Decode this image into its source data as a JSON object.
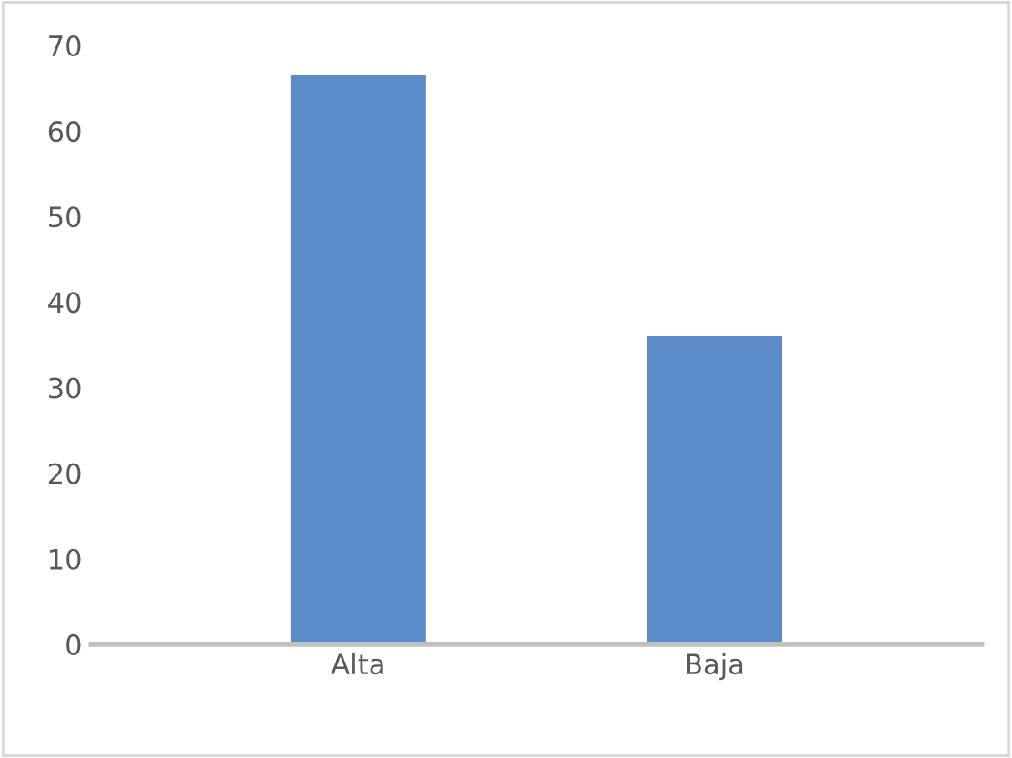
{
  "chart_data": {
    "type": "bar",
    "categories": [
      "Alta",
      "Baja"
    ],
    "values": [
      66.5,
      36
    ],
    "color": "#5b8cc8",
    "ylim": [
      0,
      70
    ],
    "yticks": [
      0,
      10,
      20,
      30,
      40,
      50,
      60,
      70
    ],
    "grid": false
  }
}
